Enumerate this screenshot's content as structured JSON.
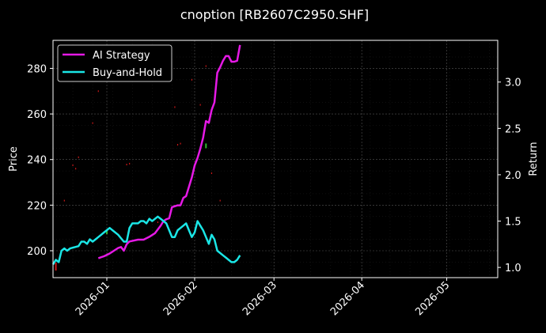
{
  "chart_data": {
    "type": "line",
    "title": "cnoption [RB2607C2950.SHF]",
    "xlabel": "",
    "ylabel_left": "Price",
    "ylabel_right": "Return",
    "x_range": [
      "2025-12-13",
      "2026-05-19"
    ],
    "x_ticks": [
      "2026-01-01",
      "2026-02-01",
      "2026-03-01",
      "2026-04-01",
      "2026-05-01"
    ],
    "x_tick_labels": [
      "2026-01",
      "2026-02",
      "2026-03",
      "2026-04",
      "2026-05"
    ],
    "ylim_left": [
      188.2,
      292.3
    ],
    "yticks_left": [
      200,
      220,
      240,
      260,
      280
    ],
    "ylim_right": [
      0.89,
      3.45
    ],
    "yticks_right": [
      1.0,
      1.5,
      2.0,
      2.5,
      3.0
    ],
    "grid": true,
    "legend_position": "top-left",
    "legend": [
      "AI Strategy",
      "Buy-and-Hold"
    ],
    "colors": {
      "ai_strategy": "#e619e6",
      "buy_and_hold": "#1ae6e6",
      "buy_marker": "#2db82d",
      "sell_marker": "#cc1818",
      "axes": "#ffffff",
      "grid": "#555555",
      "background": "#000000"
    },
    "series": [
      {
        "name": "AI Strategy",
        "axis": "right",
        "points": [
          [
            "2025-12-29",
            1.1
          ],
          [
            "2025-12-31",
            1.12
          ],
          [
            "2026-01-02",
            1.15
          ],
          [
            "2026-01-05",
            1.21
          ],
          [
            "2026-01-06",
            1.22
          ],
          [
            "2026-01-07",
            1.18
          ],
          [
            "2026-01-08",
            1.25
          ],
          [
            "2026-01-09",
            1.28
          ],
          [
            "2026-01-12",
            1.3
          ],
          [
            "2026-01-14",
            1.3
          ],
          [
            "2026-01-16",
            1.33
          ],
          [
            "2026-01-18",
            1.37
          ],
          [
            "2026-01-19",
            1.41
          ],
          [
            "2026-01-20",
            1.45
          ],
          [
            "2026-01-21",
            1.5
          ],
          [
            "2026-01-22",
            1.52
          ],
          [
            "2026-01-23",
            1.53
          ],
          [
            "2026-01-24",
            1.65
          ],
          [
            "2026-01-26",
            1.67
          ],
          [
            "2026-01-27",
            1.67
          ],
          [
            "2026-01-28",
            1.75
          ],
          [
            "2026-01-29",
            1.77
          ],
          [
            "2026-01-31",
            1.97
          ],
          [
            "2026-02-01",
            2.1
          ],
          [
            "2026-02-02",
            2.18
          ],
          [
            "2026-02-03",
            2.28
          ],
          [
            "2026-02-04",
            2.4
          ],
          [
            "2026-02-05",
            2.58
          ],
          [
            "2026-02-06",
            2.56
          ],
          [
            "2026-02-07",
            2.7
          ],
          [
            "2026-02-08",
            2.78
          ],
          [
            "2026-02-09",
            3.1
          ],
          [
            "2026-02-10",
            3.16
          ],
          [
            "2026-02-11",
            3.23
          ],
          [
            "2026-02-12",
            3.28
          ],
          [
            "2026-02-13",
            3.28
          ],
          [
            "2026-02-14",
            3.22
          ],
          [
            "2026-02-15",
            3.22
          ],
          [
            "2026-02-16",
            3.23
          ],
          [
            "2026-02-17",
            3.4
          ]
        ]
      },
      {
        "name": "Buy-and-Hold",
        "axis": "left",
        "points": [
          [
            "2025-12-13",
            194
          ],
          [
            "2025-12-14",
            196
          ],
          [
            "2025-12-15",
            195
          ],
          [
            "2025-12-16",
            200
          ],
          [
            "2025-12-17",
            201
          ],
          [
            "2025-12-18",
            200
          ],
          [
            "2025-12-19",
            201
          ],
          [
            "2025-12-22",
            202
          ],
          [
            "2025-12-23",
            204
          ],
          [
            "2025-12-24",
            204
          ],
          [
            "2025-12-25",
            203
          ],
          [
            "2025-12-26",
            205
          ],
          [
            "2025-12-27",
            204
          ],
          [
            "2025-12-28",
            205
          ],
          [
            "2025-12-29",
            206
          ],
          [
            "2025-12-31",
            208
          ],
          [
            "2026-01-02",
            210
          ],
          [
            "2026-01-03",
            209
          ],
          [
            "2026-01-05",
            207
          ],
          [
            "2026-01-07",
            204
          ],
          [
            "2026-01-08",
            204
          ],
          [
            "2026-01-09",
            210
          ],
          [
            "2026-01-10",
            212
          ],
          [
            "2026-01-12",
            212
          ],
          [
            "2026-01-13",
            213
          ],
          [
            "2026-01-14",
            213
          ],
          [
            "2026-01-15",
            212
          ],
          [
            "2026-01-16",
            214
          ],
          [
            "2026-01-17",
            213
          ],
          [
            "2026-01-19",
            215
          ],
          [
            "2026-01-20",
            214
          ],
          [
            "2026-01-21",
            213
          ],
          [
            "2026-01-22",
            212
          ],
          [
            "2026-01-23",
            209
          ],
          [
            "2026-01-24",
            206
          ],
          [
            "2026-01-25",
            206
          ],
          [
            "2026-01-26",
            209
          ],
          [
            "2026-01-28",
            211
          ],
          [
            "2026-01-29",
            212
          ],
          [
            "2026-01-30",
            209
          ],
          [
            "2026-01-31",
            206
          ],
          [
            "2026-02-01",
            208
          ],
          [
            "2026-02-02",
            213
          ],
          [
            "2026-02-03",
            211
          ],
          [
            "2026-02-04",
            209
          ],
          [
            "2026-02-05",
            206
          ],
          [
            "2026-02-06",
            203
          ],
          [
            "2026-02-07",
            207
          ],
          [
            "2026-02-08",
            205
          ],
          [
            "2026-02-09",
            200
          ],
          [
            "2026-02-10",
            199
          ],
          [
            "2026-02-11",
            198
          ],
          [
            "2026-02-12",
            197
          ],
          [
            "2026-02-13",
            196
          ],
          [
            "2026-02-14",
            195
          ],
          [
            "2026-02-15",
            195
          ],
          [
            "2026-02-16",
            196
          ],
          [
            "2026-02-17",
            198
          ]
        ]
      }
    ],
    "buy_markers": [
      [
        "2026-01-01",
        208.3
      ],
      [
        "2026-02-05",
        246
      ]
    ],
    "sell_markers": [
      [
        "2025-12-14",
        193.4
      ],
      [
        "2025-12-17",
        222
      ],
      [
        "2025-12-20",
        237.5
      ],
      [
        "2025-12-21",
        236
      ],
      [
        "2025-12-22",
        241
      ],
      [
        "2025-12-27",
        256
      ],
      [
        "2025-12-29",
        270
      ],
      [
        "2026-01-08",
        237.8
      ],
      [
        "2026-01-09",
        238.2
      ],
      [
        "2026-01-19",
        212.5
      ],
      [
        "2026-01-25",
        263
      ],
      [
        "2026-01-26",
        246.5
      ],
      [
        "2026-01-27",
        247
      ],
      [
        "2026-01-31",
        275
      ],
      [
        "2026-02-03",
        264
      ],
      [
        "2026-02-05",
        281
      ],
      [
        "2026-02-07",
        234
      ],
      [
        "2026-02-10",
        222
      ]
    ]
  }
}
